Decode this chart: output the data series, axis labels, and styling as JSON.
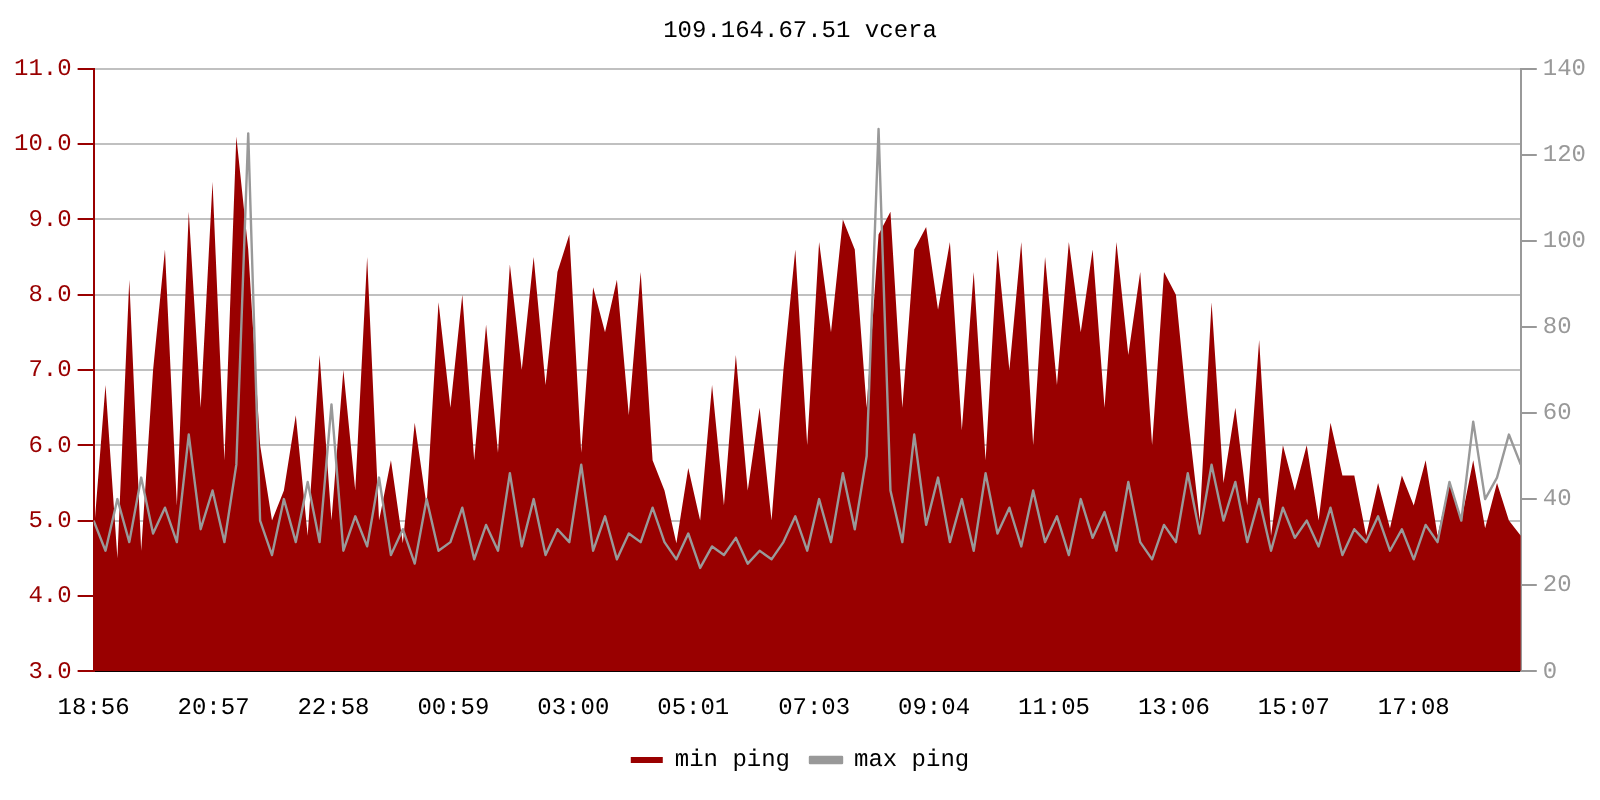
{
  "chart_data": {
    "type": "area",
    "title": "109.164.67.51 vcera",
    "x": [
      "--01-01T18:56",
      "--01-01T19:08",
      "--01-01T19:20",
      "--01-01T19:32",
      "--01-01T19:44",
      "--01-01T19:56",
      "--01-01T20:08",
      "--01-01T20:20",
      "--01-01T20:32",
      "--01-01T20:44",
      "--01-01T20:56",
      "--01-01T21:08",
      "--01-01T21:20",
      "--01-01T21:32",
      "--01-01T21:44",
      "--01-01T21:56",
      "--01-01T22:08",
      "--01-01T22:20",
      "--01-01T22:32",
      "--01-01T22:44",
      "--01-01T22:56",
      "--01-01T23:08",
      "--01-01T23:20",
      "--01-01T23:32",
      "--01-01T23:44",
      "--01-01T23:56",
      "--01-02T00:08",
      "--01-02T00:20",
      "--01-02T00:32",
      "--01-02T00:44",
      "--01-02T00:56",
      "--01-02T01:08",
      "--01-02T01:20",
      "--01-02T01:32",
      "--01-02T01:44",
      "--01-02T01:56",
      "--01-02T02:08",
      "--01-02T02:20",
      "--01-02T02:32",
      "--01-02T02:44",
      "--01-02T02:56",
      "--01-02T03:08",
      "--01-02T03:20",
      "--01-02T03:32",
      "--01-02T03:44",
      "--01-02T03:56",
      "--01-02T04:08",
      "--01-02T04:20",
      "--01-02T04:32",
      "--01-02T04:44",
      "--01-02T04:56",
      "--01-02T05:08",
      "--01-02T05:20",
      "--01-02T05:32",
      "--01-02T05:44",
      "--01-02T05:56",
      "--01-02T06:08",
      "--01-02T06:20",
      "--01-02T06:32",
      "--01-02T06:44",
      "--01-02T06:56",
      "--01-02T07:08",
      "--01-02T07:20",
      "--01-02T07:32",
      "--01-02T07:44",
      "--01-02T07:56",
      "--01-02T08:08",
      "--01-02T08:20",
      "--01-02T08:32",
      "--01-02T08:44",
      "--01-02T08:56",
      "--01-02T09:08",
      "--01-02T09:20",
      "--01-02T09:32",
      "--01-02T09:44",
      "--01-02T09:56",
      "--01-02T10:08",
      "--01-02T10:20",
      "--01-02T10:32",
      "--01-02T10:44",
      "--01-02T10:56",
      "--01-02T11:08",
      "--01-02T11:20",
      "--01-02T11:32",
      "--01-02T11:44",
      "--01-02T11:56",
      "--01-02T12:08",
      "--01-02T12:20",
      "--01-02T12:32",
      "--01-02T12:44",
      "--01-02T12:56",
      "--01-02T13:08",
      "--01-02T13:20",
      "--01-02T13:32",
      "--01-02T13:44",
      "--01-02T13:56",
      "--01-02T14:08",
      "--01-02T14:20",
      "--01-02T14:32",
      "--01-02T14:44",
      "--01-02T14:56",
      "--01-02T15:08",
      "--01-02T15:20",
      "--01-02T15:32",
      "--01-02T15:44",
      "--01-02T15:56",
      "--01-02T16:08",
      "--01-02T16:20",
      "--01-02T16:32",
      "--01-02T16:44",
      "--01-02T16:56",
      "--01-02T17:08",
      "--01-02T17:20",
      "--01-02T17:32",
      "--01-02T17:44",
      "--01-02T17:56",
      "--01-02T18:08",
      "--01-02T18:20",
      "--01-02T18:32",
      "--01-02T18:44",
      "--01-02T18:56"
    ],
    "series": [
      {
        "name": "min ping",
        "color": "#990000",
        "values": [
          4.8,
          6.8,
          4.5,
          8.2,
          4.6,
          7.0,
          8.6,
          5.2,
          9.1,
          6.5,
          9.5,
          5.8,
          10.1,
          8.6,
          6.0,
          5.0,
          5.4,
          6.4,
          4.8,
          7.2,
          5.0,
          7.0,
          5.4,
          8.5,
          5.0,
          5.8,
          4.7,
          6.3,
          5.2,
          7.9,
          6.5,
          8.0,
          5.8,
          7.6,
          5.9,
          8.4,
          7.0,
          8.5,
          6.8,
          8.3,
          8.8,
          5.9,
          8.1,
          7.5,
          8.2,
          6.4,
          8.3,
          5.8,
          5.4,
          4.7,
          5.7,
          5.0,
          6.8,
          5.2,
          7.2,
          5.4,
          6.5,
          5.0,
          7.0,
          8.6,
          6.0,
          8.7,
          7.5,
          9.0,
          8.6,
          6.5,
          8.8,
          9.1,
          6.5,
          8.6,
          8.9,
          7.8,
          8.7,
          6.2,
          8.3,
          5.8,
          8.6,
          7.0,
          8.7,
          6.0,
          8.5,
          6.8,
          8.7,
          7.5,
          8.6,
          6.5,
          8.7,
          7.2,
          8.3,
          6.0,
          8.3,
          8.0,
          6.4,
          5.0,
          7.9,
          5.5,
          6.5,
          5.2,
          7.4,
          4.8,
          6.0,
          5.4,
          6.0,
          5.0,
          6.3,
          5.6,
          5.6,
          4.8,
          5.5,
          4.9,
          5.6,
          5.2,
          5.8,
          4.8,
          5.5,
          5.0,
          5.8,
          4.9,
          5.5,
          5.0,
          4.8
        ]
      },
      {
        "name": "max ping",
        "type": "line",
        "axis": "y2",
        "color": "#999999",
        "values": [
          35,
          28,
          40,
          30,
          45,
          32,
          38,
          30,
          55,
          33,
          42,
          30,
          48,
          125,
          35,
          27,
          40,
          30,
          44,
          30,
          62,
          28,
          36,
          29,
          45,
          27,
          33,
          25,
          40,
          28,
          30,
          38,
          26,
          34,
          28,
          46,
          29,
          40,
          27,
          33,
          30,
          48,
          28,
          36,
          26,
          32,
          30,
          38,
          30,
          26,
          32,
          24,
          29,
          27,
          31,
          25,
          28,
          26,
          30,
          36,
          28,
          40,
          30,
          46,
          33,
          50,
          126,
          42,
          30,
          55,
          34,
          45,
          30,
          40,
          28,
          46,
          32,
          38,
          29,
          42,
          30,
          36,
          27,
          40,
          31,
          37,
          28,
          44,
          30,
          26,
          34,
          30,
          46,
          32,
          48,
          35,
          44,
          30,
          40,
          28,
          38,
          31,
          35,
          29,
          38,
          27,
          33,
          30,
          36,
          28,
          33,
          26,
          34,
          30,
          44,
          35,
          58,
          40,
          45,
          55,
          48
        ]
      }
    ],
    "xlim": [
      "--01-01T18:56",
      "--01-02T18:56"
    ],
    "xticks": [
      {
        "value": "--01-01T18:56",
        "label": "18:56"
      },
      {
        "value": "--01-01T20:57",
        "label": "20:57"
      },
      {
        "value": "--01-01T22:58",
        "label": "22:58"
      },
      {
        "value": "--01-02T00:59",
        "label": "00:59"
      },
      {
        "value": "--01-02T03:00",
        "label": "03:00"
      },
      {
        "value": "--01-02T05:01",
        "label": "05:01"
      },
      {
        "value": "--01-02T07:03",
        "label": "07:03"
      },
      {
        "value": "--01-02T09:04",
        "label": "09:04"
      },
      {
        "value": "--01-02T11:05",
        "label": "11:05"
      },
      {
        "value": "--01-02T13:06",
        "label": "13:06"
      },
      {
        "value": "--01-02T15:07",
        "label": "15:07"
      },
      {
        "value": "--01-02T17:08",
        "label": "17:08"
      }
    ],
    "ylim": [
      3,
      11
    ],
    "yticks": [
      {
        "value": 3,
        "label": "3.0"
      },
      {
        "value": 4,
        "label": "4.0"
      },
      {
        "value": 5,
        "label": "5.0"
      },
      {
        "value": 6,
        "label": "6.0"
      },
      {
        "value": 7,
        "label": "7.0"
      },
      {
        "value": 8,
        "label": "8.0"
      },
      {
        "value": 9,
        "label": "9.0"
      },
      {
        "value": 10,
        "label": "10.0"
      },
      {
        "value": 11,
        "label": "11.0"
      }
    ],
    "y2lim": [
      0,
      140
    ],
    "y2ticks": [
      0,
      20,
      40,
      60,
      80,
      100,
      120,
      140
    ],
    "grid": "y",
    "legend": "bottom",
    "marker": "none"
  }
}
